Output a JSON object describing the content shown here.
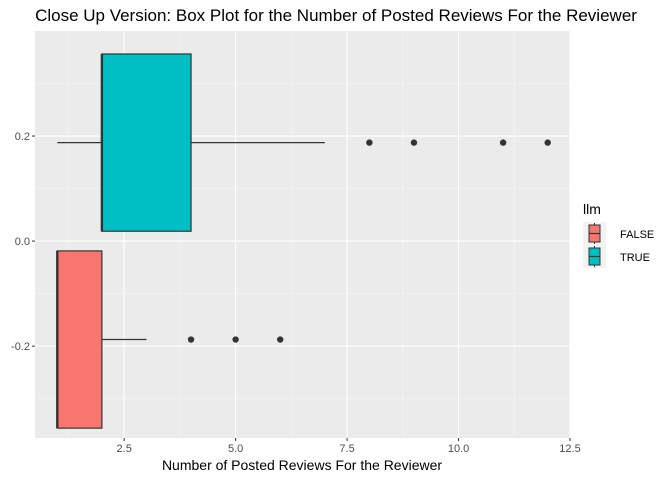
{
  "chart_data": {
    "type": "box",
    "title": "Close Up Version: Box Plot for the Number of Posted Reviews For the Reviewer",
    "xlabel": "Number of Posted Reviews For the Reviewer",
    "ylabel": "",
    "xlim": [
      0.5,
      12.5
    ],
    "ylim": [
      -0.375,
      0.4
    ],
    "x_ticks": [
      2.5,
      5.0,
      7.5,
      10.0,
      12.5
    ],
    "x_tick_labels": [
      "2.5",
      "5.0",
      "7.5",
      "10.0",
      "12.5"
    ],
    "y_ticks": [
      0.2,
      0.0,
      -0.2
    ],
    "y_tick_labels": [
      "0.2",
      "0.0",
      "-0.2"
    ],
    "grid": true,
    "legend": {
      "title": "llm",
      "position": "right"
    },
    "series": [
      {
        "name": "FALSE",
        "color": "#F8766D",
        "position": -0.1875,
        "min": 1,
        "q1": 1,
        "median": 1,
        "q3": 2,
        "max": 3,
        "outliers": [
          4,
          5,
          6
        ]
      },
      {
        "name": "TRUE",
        "color": "#00BFC4",
        "position": 0.1875,
        "min": 1,
        "q1": 2,
        "median": 2,
        "q3": 4,
        "max": 7,
        "outliers": [
          8,
          9,
          11,
          12
        ]
      }
    ]
  }
}
